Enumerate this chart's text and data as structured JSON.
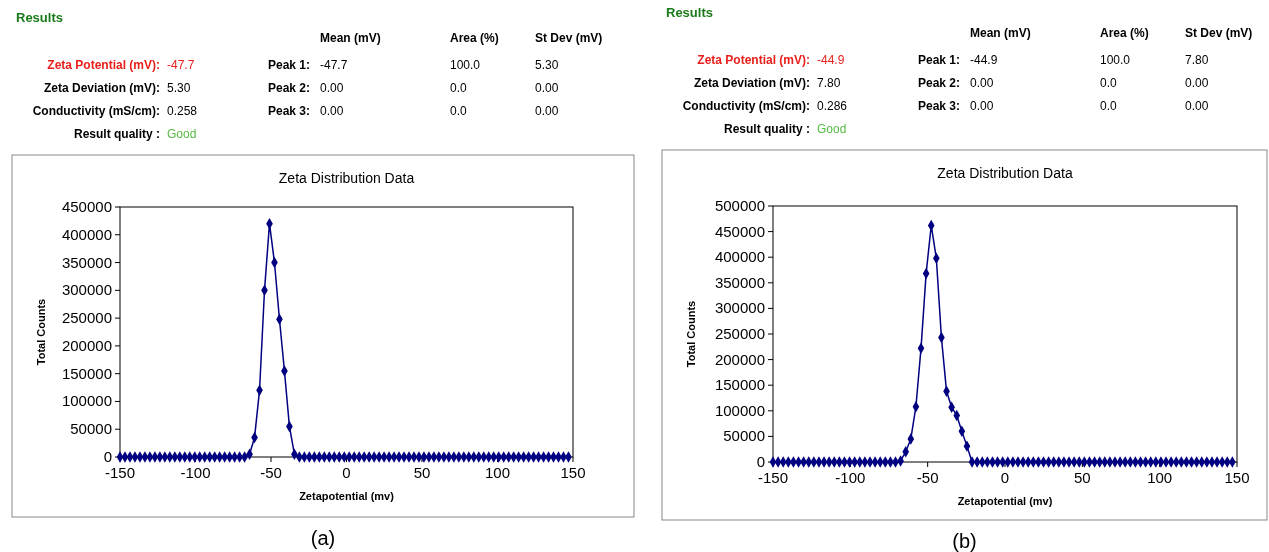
{
  "chart_data": [
    {
      "type": "other",
      "title": "Results",
      "annotations": [
        "Mean (mV)",
        "Area (%)",
        "St Dev (mV)",
        "Zeta Potential (mV):",
        "-47.7",
        "Peak 1:",
        "-47.7",
        "100.0",
        "5.30",
        "Zeta Deviation (mV):",
        "5.30",
        "Peak 2:",
        "0.00",
        "0.0",
        "0.00",
        "Conductivity (mS/cm):",
        "0.258",
        "Peak 3:",
        "0.00",
        "0.0",
        "0.00",
        "Result quality :",
        "Good"
      ]
    },
    {
      "type": "line",
      "title": "Zeta Distribution Data",
      "xlabel": "Zetapotential (mv)",
      "ylabel": "Total Counts",
      "annotations": [
        "(a)"
      ],
      "marker": "diamond",
      "grid": false,
      "xlim": [
        -150,
        150
      ],
      "xticks": [
        -150,
        -100,
        -50,
        0,
        50,
        100,
        150
      ],
      "ylim": [
        0,
        450000
      ],
      "yticks": [
        0,
        50000,
        100000,
        150000,
        200000,
        250000,
        300000,
        350000,
        400000,
        450000
      ],
      "series": [
        {
          "color": "#000080",
          "x": [
            -150,
            -146.7,
            -143.4,
            -140.1,
            -136.8,
            -133.5,
            -130.2,
            -126.9,
            -123.6,
            -120.3,
            -117,
            -113.7,
            -110.4,
            -107.1,
            -103.8,
            -100.5,
            -97.2,
            -93.9,
            -90.6,
            -87.3,
            -84,
            -80.7,
            -77.4,
            -74.1,
            -70.8,
            -67.5,
            -64.2,
            -60.9,
            -57.6,
            -54.3,
            -51,
            -47.7,
            -44.4,
            -41.1,
            -37.8,
            -34.5,
            -31.2,
            -27.9,
            -24.6,
            -21.3,
            -18,
            -14.7,
            -11.4,
            -8.1,
            -4.8,
            -1.5,
            1.8,
            5.1,
            8.4,
            11.7,
            15,
            18.3,
            21.6,
            24.9,
            28.2,
            31.5,
            34.8,
            38.1,
            41.4,
            44.7,
            48,
            51.3,
            54.6,
            57.9,
            61.2,
            64.5,
            67.8,
            71.1,
            74.4,
            77.7,
            81,
            84.3,
            87.6,
            90.9,
            94.2,
            97.5,
            100.8,
            104.1,
            107.4,
            110.7,
            114,
            117.3,
            120.6,
            123.9,
            127.2,
            130.5,
            133.8,
            137.1,
            140.4,
            143.7,
            147
          ],
          "values": [
            0,
            0,
            0,
            0,
            0,
            0,
            0,
            0,
            0,
            0,
            0,
            0,
            0,
            0,
            0,
            0,
            0,
            0,
            0,
            0,
            0,
            0,
            0,
            0,
            0,
            0,
            5000,
            35000,
            120000,
            300000,
            420000,
            350000,
            248000,
            155000,
            55000,
            5000,
            0,
            0,
            0,
            0,
            0,
            0,
            0,
            0,
            0,
            0,
            0,
            0,
            0,
            0,
            0,
            0,
            0,
            0,
            0,
            0,
            0,
            0,
            0,
            0,
            0,
            0,
            0,
            0,
            0,
            0,
            0,
            0,
            0,
            0,
            0,
            0,
            0,
            0,
            0,
            0,
            0,
            0,
            0,
            0,
            0,
            0,
            0,
            0,
            0,
            0,
            0,
            0,
            0,
            0,
            0
          ]
        }
      ]
    },
    {
      "type": "other",
      "title": "Results",
      "annotations": [
        "Mean (mV)",
        "Area (%)",
        "St Dev (mV)",
        "Zeta Potential (mV):",
        "-44.9",
        "Peak 1:",
        "-44.9",
        "100.0",
        "7.80",
        "Zeta Deviation (mV):",
        "7.80",
        "Peak 2:",
        "0.00",
        "0.0",
        "0.00",
        "Conductivity (mS/cm):",
        "0.286",
        "Peak 3:",
        "0.00",
        "0.0",
        "0.00",
        "Result quality :",
        "Good"
      ]
    },
    {
      "type": "line",
      "title": "Zeta Distribution Data",
      "xlabel": "Zetapotential (mv)",
      "ylabel": "Total Counts",
      "annotations": [
        "(b)"
      ],
      "marker": "diamond",
      "grid": false,
      "xlim": [
        -150,
        150
      ],
      "xticks": [
        -150,
        -100,
        -50,
        0,
        50,
        100,
        150
      ],
      "ylim": [
        0,
        500000
      ],
      "yticks": [
        0,
        50000,
        100000,
        150000,
        200000,
        250000,
        300000,
        350000,
        400000,
        450000,
        500000
      ],
      "series": [
        {
          "color": "#000080",
          "x": [
            -150,
            -146.7,
            -143.4,
            -140.1,
            -136.8,
            -133.5,
            -130.2,
            -126.9,
            -123.6,
            -120.3,
            -117,
            -113.7,
            -110.4,
            -107.1,
            -103.8,
            -100.5,
            -97.2,
            -93.9,
            -90.6,
            -87.3,
            -84,
            -80.7,
            -77.4,
            -74.1,
            -70.8,
            -67.5,
            -64.2,
            -60.9,
            -57.6,
            -54.3,
            -51,
            -47.7,
            -44.4,
            -41.1,
            -37.8,
            -34.5,
            -31.2,
            -27.9,
            -24.6,
            -21.3,
            -18,
            -14.7,
            -11.4,
            -8.1,
            -4.8,
            -1.5,
            1.8,
            5.1,
            8.4,
            11.7,
            15,
            18.3,
            21.6,
            24.9,
            28.2,
            31.5,
            34.8,
            38.1,
            41.4,
            44.7,
            48,
            51.3,
            54.6,
            57.9,
            61.2,
            64.5,
            67.8,
            71.1,
            74.4,
            77.7,
            81,
            84.3,
            87.6,
            90.9,
            94.2,
            97.5,
            100.8,
            104.1,
            107.4,
            110.7,
            114,
            117.3,
            120.6,
            123.9,
            127.2,
            130.5,
            133.8,
            137.1,
            140.4,
            143.7,
            147
          ],
          "values": [
            0,
            0,
            0,
            0,
            0,
            0,
            0,
            0,
            0,
            0,
            0,
            0,
            0,
            0,
            0,
            0,
            0,
            0,
            0,
            0,
            0,
            0,
            0,
            0,
            0,
            2000,
            20000,
            45000,
            108000,
            222000,
            368000,
            462000,
            398000,
            243000,
            138000,
            107000,
            91000,
            60000,
            31000,
            0,
            0,
            0,
            0,
            0,
            0,
            0,
            0,
            0,
            0,
            0,
            0,
            0,
            0,
            0,
            0,
            0,
            0,
            0,
            0,
            0,
            0,
            0,
            0,
            0,
            0,
            0,
            0,
            0,
            0,
            0,
            0,
            0,
            0,
            0,
            0,
            0,
            0,
            0,
            0,
            0,
            0,
            0,
            0,
            0,
            0,
            0,
            0,
            0,
            0,
            0,
            0
          ]
        }
      ]
    }
  ]
}
